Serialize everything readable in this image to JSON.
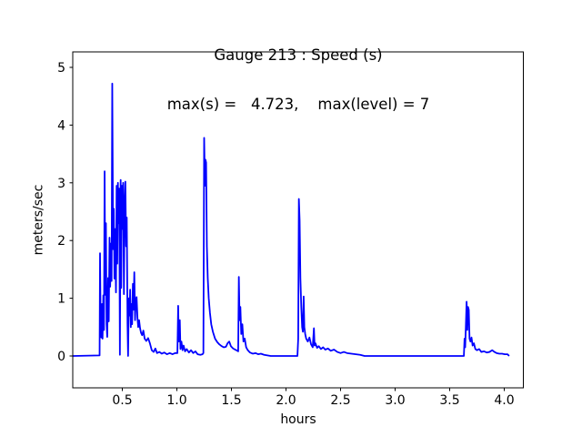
{
  "figure": {
    "background": "#ffffff"
  },
  "chart_data": {
    "type": "line",
    "title": "Gauge 213 : Speed (s)",
    "subtitle": "max(s) =   4.723,    max(level) = 7",
    "xlabel": "hours",
    "ylabel": "meters/sec",
    "max_s": 4.723,
    "max_level": 7,
    "line_color": "#0000ff",
    "axes_color": "#000000",
    "grid": false,
    "xlim": [
      0.046,
      4.175
    ],
    "ylim": [
      -0.552,
      5.268
    ],
    "x_ticks": [
      0.5,
      1.0,
      1.5,
      2.0,
      2.5,
      3.0,
      3.5,
      4.0
    ],
    "x_tick_labels": [
      "0.5",
      "1.0",
      "1.5",
      "2.0",
      "2.5",
      "3.0",
      "3.5",
      "4.0"
    ],
    "y_ticks": [
      0,
      1,
      2,
      3,
      4,
      5
    ],
    "y_tick_labels": [
      "0",
      "1",
      "2",
      "3",
      "4",
      "5"
    ],
    "series": [
      {
        "name": "speed",
        "x": [
          0.05,
          0.292,
          0.296,
          0.302,
          0.308,
          0.314,
          0.319,
          0.326,
          0.332,
          0.338,
          0.344,
          0.35,
          0.356,
          0.362,
          0.37,
          0.376,
          0.383,
          0.389,
          0.396,
          0.402,
          0.408,
          0.416,
          0.422,
          0.428,
          0.435,
          0.442,
          0.448,
          0.454,
          0.46,
          0.466,
          0.472,
          0.478,
          0.485,
          0.49,
          0.496,
          0.502,
          0.508,
          0.515,
          0.521,
          0.528,
          0.535,
          0.541,
          0.548,
          0.553,
          0.56,
          0.566,
          0.572,
          0.578,
          0.585,
          0.59,
          0.597,
          0.603,
          0.61,
          0.617,
          0.624,
          0.631,
          0.639,
          0.646,
          0.654,
          0.663,
          0.672,
          0.682,
          0.693,
          0.705,
          0.72,
          0.737,
          0.753,
          0.77,
          0.788,
          0.803,
          0.818,
          0.84,
          0.862,
          0.885,
          0.91,
          0.935,
          0.96,
          0.985,
          1.005,
          1.012,
          1.018,
          1.027,
          1.033,
          1.042,
          1.052,
          1.062,
          1.075,
          1.09,
          1.11,
          1.13,
          1.15,
          1.17,
          1.19,
          1.215,
          1.235,
          1.243,
          1.25,
          1.257,
          1.262,
          1.268,
          1.275,
          1.283,
          1.292,
          1.303,
          1.315,
          1.33,
          1.35,
          1.37,
          1.39,
          1.41,
          1.43,
          1.45,
          1.465,
          1.48,
          1.495,
          1.515,
          1.535,
          1.555,
          1.562,
          1.568,
          1.575,
          1.582,
          1.59,
          1.6,
          1.61,
          1.622,
          1.635,
          1.65,
          1.67,
          1.695,
          1.72,
          1.745,
          1.77,
          1.8,
          1.83,
          1.86,
          1.89,
          2.105,
          2.112,
          2.118,
          2.125,
          2.132,
          2.14,
          2.148,
          2.155,
          2.162,
          2.168,
          2.176,
          2.185,
          2.2,
          2.215,
          2.23,
          2.245,
          2.256,
          2.262,
          2.27,
          2.285,
          2.3,
          2.32,
          2.34,
          2.36,
          2.385,
          2.41,
          2.44,
          2.47,
          2.5,
          2.53,
          2.56,
          2.6,
          2.64,
          2.68,
          2.72,
          3.6,
          3.63,
          3.636,
          3.642,
          3.648,
          3.655,
          3.662,
          3.668,
          3.675,
          3.682,
          3.69,
          3.7,
          3.71,
          3.722,
          3.735,
          3.75,
          3.77,
          3.79,
          3.815,
          3.84,
          3.865,
          3.89,
          3.91,
          3.93,
          3.955,
          3.98,
          4.005,
          4.03,
          4.045
        ],
        "y": [
          0,
          0.01,
          1.78,
          0.5,
          0.32,
          0.9,
          0.3,
          1.05,
          0.45,
          3.2,
          1.06,
          2.3,
          0.55,
          0.33,
          1.35,
          0.6,
          2.05,
          1.2,
          1.95,
          1.3,
          4.72,
          1.85,
          2.55,
          1.34,
          2.2,
          1.1,
          2.95,
          1.6,
          3.0,
          2.3,
          2.9,
          0.02,
          3.05,
          1.18,
          2.95,
          2.2,
          3.0,
          1.07,
          2.6,
          3.02,
          1.9,
          2.4,
          0.55,
          0.0,
          1.0,
          0.7,
          1.15,
          0.5,
          0.9,
          0.55,
          1.25,
          0.8,
          1.45,
          0.62,
          0.97,
          1.02,
          0.66,
          0.5,
          0.62,
          0.48,
          0.4,
          0.36,
          0.44,
          0.3,
          0.26,
          0.31,
          0.22,
          0.1,
          0.07,
          0.13,
          0.05,
          0.07,
          0.04,
          0.06,
          0.03,
          0.05,
          0.03,
          0.05,
          0.05,
          0.87,
          0.25,
          0.62,
          0.12,
          0.25,
          0.1,
          0.18,
          0.08,
          0.12,
          0.06,
          0.1,
          0.05,
          0.08,
          0.03,
          0.02,
          0.03,
          0.05,
          3.78,
          2.95,
          3.4,
          3.35,
          1.9,
          1.35,
          1.0,
          0.75,
          0.55,
          0.42,
          0.3,
          0.24,
          0.2,
          0.17,
          0.15,
          0.16,
          0.22,
          0.25,
          0.17,
          0.13,
          0.11,
          0.09,
          0.08,
          1.37,
          0.62,
          0.85,
          0.38,
          0.55,
          0.25,
          0.3,
          0.15,
          0.1,
          0.06,
          0.04,
          0.05,
          0.03,
          0.04,
          0.02,
          0.01,
          0.0,
          0.0,
          0.0,
          0.3,
          2.72,
          2.35,
          1.35,
          0.85,
          0.5,
          0.42,
          1.03,
          0.5,
          0.38,
          0.3,
          0.25,
          0.32,
          0.2,
          0.15,
          0.48,
          0.18,
          0.22,
          0.14,
          0.17,
          0.12,
          0.15,
          0.11,
          0.13,
          0.09,
          0.11,
          0.07,
          0.05,
          0.07,
          0.05,
          0.04,
          0.03,
          0.02,
          0.0,
          0.0,
          0.0,
          0.3,
          0.15,
          0.5,
          0.94,
          0.45,
          0.85,
          0.8,
          0.3,
          0.25,
          0.32,
          0.18,
          0.22,
          0.12,
          0.1,
          0.12,
          0.07,
          0.08,
          0.06,
          0.07,
          0.1,
          0.07,
          0.05,
          0.04,
          0.04,
          0.03,
          0.03,
          0.0
        ]
      }
    ]
  }
}
